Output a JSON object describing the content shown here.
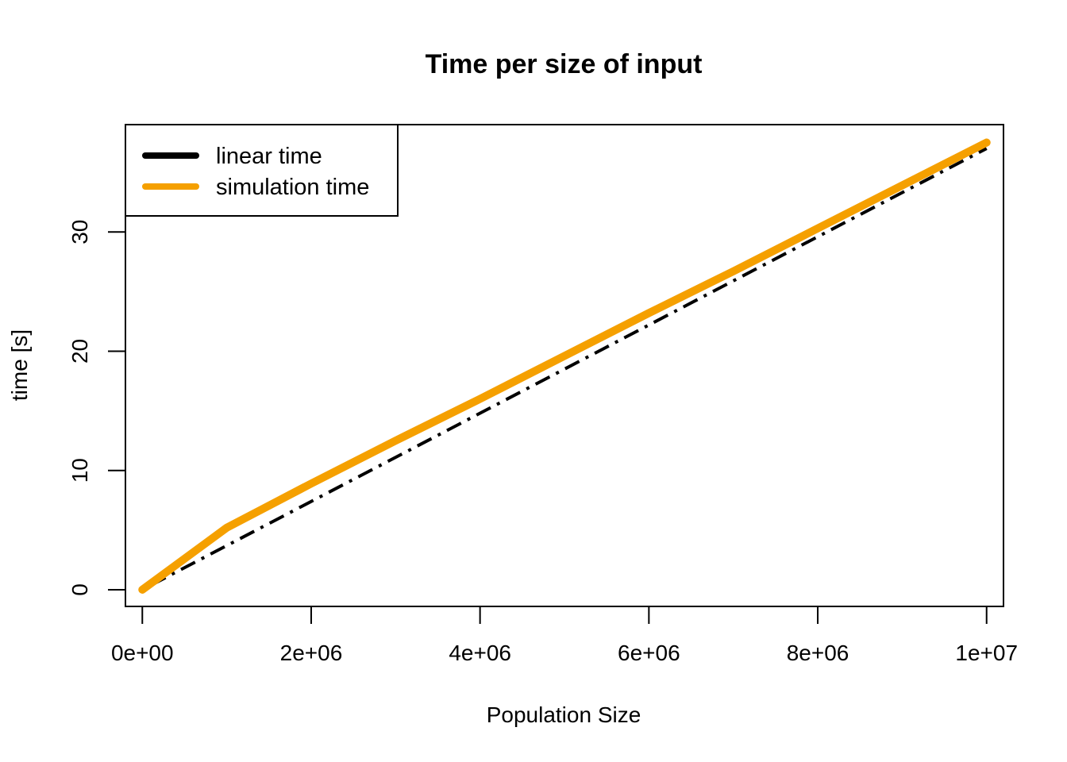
{
  "chart_data": {
    "type": "line",
    "title": "Time per size of input",
    "xlabel": "Population Size",
    "ylabel": "time [s]",
    "xlim": [
      -200000,
      10200000
    ],
    "ylim": [
      -1.4,
      39
    ],
    "x_ticks": [
      0,
      2000000,
      4000000,
      6000000,
      8000000,
      10000000
    ],
    "x_tick_labels": [
      "0e+00",
      "2e+06",
      "4e+06",
      "6e+06",
      "8e+06",
      "1e+07"
    ],
    "y_ticks": [
      0,
      10,
      20,
      30
    ],
    "y_tick_labels": [
      "0",
      "10",
      "20",
      "30"
    ],
    "legend_position": "top-left",
    "series": [
      {
        "name": "linear time",
        "color": "#000000",
        "style": "dotdash",
        "x": [
          0,
          10000000
        ],
        "values": [
          0,
          37
        ]
      },
      {
        "name": "simulation time",
        "color": "#F5A000",
        "style": "solid",
        "x": [
          0,
          1000000,
          2000000,
          3000000,
          4000000,
          5000000,
          6000000,
          7000000,
          8000000,
          9000000,
          10000000
        ],
        "values": [
          0,
          5.2,
          8.9,
          12.5,
          16.0,
          19.6,
          23.2,
          26.7,
          30.3,
          33.9,
          37.5
        ]
      }
    ]
  }
}
